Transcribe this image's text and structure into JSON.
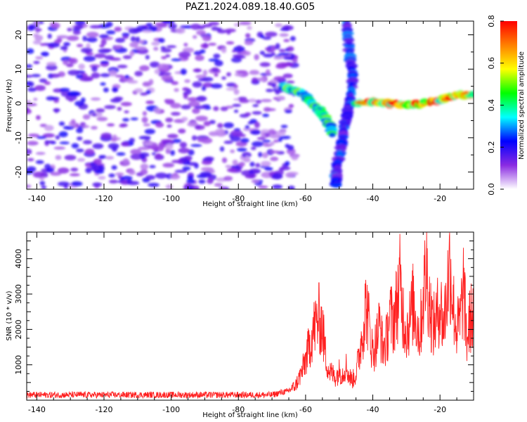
{
  "figure_title": "PAZ1.2024.089.18.40.G05",
  "chart_data": [
    {
      "type": "heatmap",
      "title": "PAZ1.2024.089.18.40.G05",
      "xlabel": "Height of straight line (km)",
      "ylabel": "Frequency (Hz)",
      "xlim": [
        -143,
        -10
      ],
      "ylim": [
        -25,
        24
      ],
      "x_ticks": [
        -140,
        -120,
        -100,
        -80,
        -60,
        -40,
        -20
      ],
      "y_ticks": [
        -20,
        -10,
        0,
        10,
        20
      ],
      "colorbar": {
        "label": "Normalized spectral amplitude",
        "range": [
          0,
          0.8
        ],
        "ticks": [
          0.0,
          0.2,
          0.4,
          0.6,
          0.8
        ],
        "tick_labels": [
          "0.0",
          "0.2",
          "0.4",
          "0.6",
          "0.8"
        ],
        "colors": [
          "#ffffff",
          "#8a2be2",
          "#0000ff",
          "#00ffff",
          "#00ff00",
          "#ffff00",
          "#ff8000",
          "#ff0000"
        ]
      },
      "features": [
        {
          "name": "noise",
          "x_range": [
            -143,
            -63
          ],
          "y_range": [
            -25,
            24
          ],
          "amplitude": 0.1
        },
        {
          "name": "descending trace",
          "points": [
            [
              -67,
              5
            ],
            [
              -64,
              4
            ],
            [
              -61,
              3
            ],
            [
              -59,
              1
            ],
            [
              -57,
              -1
            ],
            [
              -55,
              -3
            ],
            [
              -53,
              -6
            ],
            [
              -52,
              -9
            ]
          ],
          "amplitude": 0.35
        },
        {
          "name": "steep trace",
          "points": [
            [
              -48,
              24
            ],
            [
              -47,
              16
            ],
            [
              -46,
              9
            ],
            [
              -46,
              6
            ],
            [
              -47,
              0
            ],
            [
              -48,
              -5
            ],
            [
              -49,
              -10
            ],
            [
              -50,
              -15
            ],
            [
              -51,
              -20
            ],
            [
              -51,
              -24
            ]
          ],
          "amplitude": 0.2
        },
        {
          "name": "flat trace",
          "points": [
            [
              -45,
              0
            ],
            [
              -40,
              0.5
            ],
            [
              -35,
              0
            ],
            [
              -30,
              -0.5
            ],
            [
              -25,
              0
            ],
            [
              -20,
              1
            ],
            [
              -15,
              2.5
            ],
            [
              -10,
              2.5
            ]
          ],
          "amplitude": 0.6
        }
      ]
    },
    {
      "type": "line",
      "xlabel": "Height of straight line (km)",
      "ylabel": "SNR (10 * v/v)",
      "xlim": [
        -143,
        -10
      ],
      "ylim": [
        0,
        4750
      ],
      "x_ticks": [
        -140,
        -120,
        -100,
        -80,
        -60,
        -40,
        -20
      ],
      "y_ticks": [
        1000,
        2000,
        3000,
        4000
      ],
      "series": [
        {
          "color": "#ff2020",
          "x": [
            -143,
            -130,
            -110,
            -90,
            -70,
            -66,
            -63,
            -61,
            -59,
            -58,
            -57,
            -56,
            -55,
            -54,
            -53,
            -52,
            -51,
            -50,
            -49,
            -48,
            -47,
            -46,
            -45,
            -44,
            -43,
            -42,
            -41,
            -40,
            -39,
            -38,
            -37,
            -36,
            -35,
            -34,
            -33,
            -32,
            -31,
            -30,
            -29,
            -28,
            -27,
            -26,
            -25,
            -24,
            -23,
            -22,
            -21,
            -20,
            -19,
            -18,
            -17,
            -16,
            -15,
            -14,
            -13,
            -12,
            -11,
            -10
          ],
          "y": [
            150,
            150,
            150,
            150,
            150,
            250,
            500,
            1000,
            1800,
            2300,
            2600,
            2800,
            2500,
            1500,
            1000,
            900,
            800,
            1000,
            900,
            1200,
            800,
            700,
            900,
            1600,
            2400,
            3300,
            2500,
            1600,
            2000,
            2600,
            1800,
            2000,
            2900,
            2700,
            3200,
            4000,
            3000,
            2400,
            2700,
            3300,
            2700,
            2200,
            3600,
            4500,
            3200,
            2500,
            2800,
            3400,
            2500,
            3600,
            4700,
            3200,
            2400,
            2700,
            3900,
            2000,
            2800,
            2900
          ]
        }
      ]
    }
  ]
}
